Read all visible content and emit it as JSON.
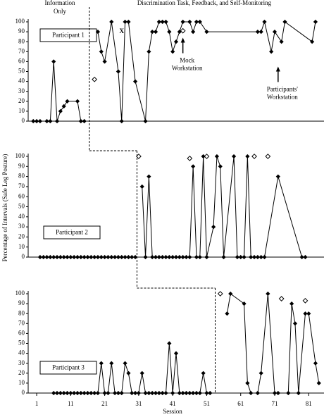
{
  "figure": {
    "phase_labels": [
      {
        "lines": [
          "Information",
          "Only"
        ]
      },
      {
        "lines": [
          "Discrimination Task, Feedback, and Self-Monitoring"
        ]
      }
    ],
    "ylabel": "Percentage of Intervals (Safe Leg Posture)",
    "xlabel": "Session"
  },
  "chart_data": [
    {
      "type": "line",
      "title": "Participant 1",
      "xlim": [
        -1.5,
        85.5
      ],
      "ylim": [
        0,
        100
      ],
      "yticks": [
        0,
        10,
        20,
        30,
        40,
        50,
        60,
        70,
        80,
        90,
        100
      ],
      "phase_change": 16.5,
      "series": [
        {
          "color": "#000000",
          "marker": "filled",
          "line": true,
          "x": [
            0,
            1,
            2,
            4,
            5,
            6,
            7,
            8,
            9,
            10,
            13,
            14,
            15
          ],
          "values": [
            0,
            0,
            0,
            0,
            0,
            60,
            0,
            10,
            15,
            20,
            20,
            0,
            0
          ]
        },
        {
          "color": "#000000",
          "marker": "filled",
          "line": true,
          "x": [
            19,
            20,
            21,
            23,
            25,
            26,
            27,
            28,
            30,
            33,
            34,
            35,
            36,
            37,
            38,
            39,
            40,
            41,
            42,
            43,
            44,
            46,
            47,
            48,
            49,
            51,
            66,
            67,
            68,
            70,
            71,
            73,
            74,
            82,
            83
          ],
          "values": [
            90,
            70,
            60,
            100,
            50,
            0,
            100,
            100,
            40,
            0,
            70,
            90,
            90,
            100,
            100,
            100,
            90,
            70,
            80,
            90,
            100,
            100,
            90,
            100,
            100,
            90,
            90,
            90,
            100,
            70,
            90,
            80,
            100,
            80,
            100
          ]
        },
        {
          "color": "#000000",
          "marker": "open",
          "line": false,
          "x": [
            18,
            44
          ],
          "values": [
            42,
            91
          ]
        }
      ],
      "markers": [
        {
          "text": "X",
          "x": 26,
          "y": 90
        }
      ],
      "annotations": [
        {
          "lines": [
            "Mock",
            "Workstation"
          ],
          "x": 44,
          "y": 84
        },
        {
          "lines": [
            "Participants'",
            "Workstation"
          ],
          "x": 72,
          "y": 55
        }
      ]
    },
    {
      "type": "line",
      "title": "Participant 2",
      "xlim": [
        -1.5,
        85.5
      ],
      "ylim": [
        0,
        100
      ],
      "yticks": [
        0,
        10,
        20,
        30,
        40,
        50,
        60,
        70,
        80,
        90,
        100
      ],
      "phase_change": 30.5,
      "series": [
        {
          "color": "#000000",
          "marker": "filled",
          "line": true,
          "x": [
            2,
            3,
            4,
            5,
            6,
            7,
            8,
            9,
            10,
            11,
            12,
            13,
            14,
            15,
            16,
            17,
            18,
            19,
            20,
            21,
            22,
            23,
            24,
            25,
            26,
            27,
            28,
            29,
            30
          ],
          "values": [
            0,
            0,
            0,
            0,
            0,
            0,
            0,
            0,
            0,
            0,
            0,
            0,
            0,
            0,
            0,
            0,
            0,
            0,
            0,
            0,
            0,
            0,
            0,
            0,
            0,
            0,
            0,
            0,
            0
          ]
        },
        {
          "color": "#000000",
          "marker": "filled",
          "line": true,
          "x": [
            32,
            33,
            34,
            35,
            36,
            37,
            38,
            39,
            40,
            41,
            42,
            43,
            44,
            45,
            46,
            47,
            48,
            49,
            50,
            51,
            53,
            54,
            55,
            56,
            59,
            60,
            61,
            62,
            63,
            64,
            65,
            66,
            67,
            68,
            72,
            79,
            80
          ],
          "values": [
            70,
            0,
            80,
            0,
            0,
            0,
            0,
            0,
            0,
            0,
            0,
            0,
            0,
            0,
            0,
            90,
            0,
            0,
            100,
            0,
            30,
            100,
            90,
            0,
            100,
            0,
            0,
            0,
            100,
            0,
            0,
            0,
            0,
            0,
            80,
            0,
            0
          ]
        },
        {
          "color": "#000000",
          "marker": "open",
          "line": false,
          "x": [
            31,
            46,
            51,
            65,
            69
          ],
          "values": [
            100,
            98,
            100,
            100,
            100
          ]
        }
      ]
    },
    {
      "type": "line",
      "title": "Participant 3",
      "xlim": [
        -1.5,
        85.5
      ],
      "ylim": [
        0,
        100
      ],
      "yticks": [
        0,
        10,
        20,
        30,
        40,
        50,
        60,
        70,
        80,
        90,
        100
      ],
      "xticks": [
        1,
        11,
        21,
        31,
        41,
        51,
        61,
        71,
        81
      ],
      "phase_change": 53.5,
      "series": [
        {
          "color": "#000000",
          "marker": "filled",
          "line": true,
          "x": [
            6,
            7,
            8,
            9,
            10,
            11,
            12,
            13,
            14,
            15,
            16,
            17,
            18,
            19,
            20,
            21,
            22,
            23,
            24,
            25,
            26,
            27,
            28,
            29,
            30,
            31,
            32,
            33,
            34,
            35,
            36,
            37,
            38,
            39,
            40,
            41,
            42,
            43,
            44,
            45,
            46,
            47,
            48,
            49,
            50,
            51,
            52
          ],
          "values": [
            0,
            0,
            0,
            0,
            0,
            0,
            0,
            0,
            0,
            0,
            0,
            0,
            0,
            0,
            30,
            0,
            0,
            30,
            0,
            0,
            0,
            30,
            20,
            0,
            0,
            0,
            20,
            0,
            0,
            0,
            0,
            0,
            0,
            0,
            50,
            0,
            40,
            0,
            0,
            0,
            0,
            0,
            0,
            0,
            20,
            0,
            0
          ]
        },
        {
          "color": "#000000",
          "marker": "filled",
          "line": true,
          "x": [
            57,
            58,
            62,
            63,
            64,
            66,
            67,
            69,
            71,
            72,
            75,
            76,
            77,
            78,
            80,
            81,
            83,
            84
          ],
          "values": [
            80,
            100,
            90,
            10,
            0,
            0,
            20,
            100,
            0,
            0,
            0,
            90,
            70,
            0,
            80,
            80,
            30,
            10
          ]
        },
        {
          "color": "#000000",
          "marker": "open",
          "line": false,
          "x": [
            55,
            73,
            80
          ],
          "values": [
            100,
            95,
            93
          ]
        }
      ]
    }
  ]
}
